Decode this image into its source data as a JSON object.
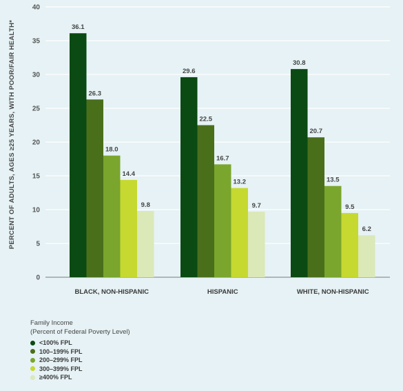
{
  "chart_data": {
    "type": "bar",
    "ylabel": "PERCENT OF ADULTS, AGES ≥25 YEARS, WITH POOR/FAIR HEALTH*",
    "ylim": [
      0,
      40
    ],
    "yticks": [
      0,
      5,
      10,
      15,
      20,
      25,
      30,
      35,
      40
    ],
    "grid": true,
    "categories": [
      "BLACK, NON-HISPANIC",
      "HISPANIC",
      "WHITE, NON-HISPANIC"
    ],
    "series": [
      {
        "name": "<100% FPL",
        "color": "#0b4a12",
        "values": [
          36.1,
          29.6,
          30.8
        ],
        "labels": [
          "36.1",
          "29.6",
          "30.8"
        ]
      },
      {
        "name": "100–199% FPL",
        "color": "#4a6f1b",
        "values": [
          26.3,
          22.5,
          20.7
        ],
        "labels": [
          "26.3",
          "22.5",
          "20.7"
        ]
      },
      {
        "name": "200–299% FPL",
        "color": "#7aa62e",
        "values": [
          18.0,
          16.7,
          13.5
        ],
        "labels": [
          "18.0",
          "16.7",
          "13.5"
        ]
      },
      {
        "name": "300–399% FPL",
        "color": "#c6d931",
        "values": [
          14.4,
          13.2,
          9.5
        ],
        "labels": [
          "14.4",
          "13.2",
          "9.5"
        ]
      },
      {
        "name": "≥400% FPL",
        "color": "#dbe8b8",
        "values": [
          9.8,
          9.7,
          6.2
        ],
        "labels": [
          "9.8",
          "9.7",
          "6.2"
        ]
      }
    ],
    "legend_placement": "bottom-left",
    "legend_title": "Family Income",
    "legend_subtitle": "(Percent of Federal Poverty Level)"
  }
}
